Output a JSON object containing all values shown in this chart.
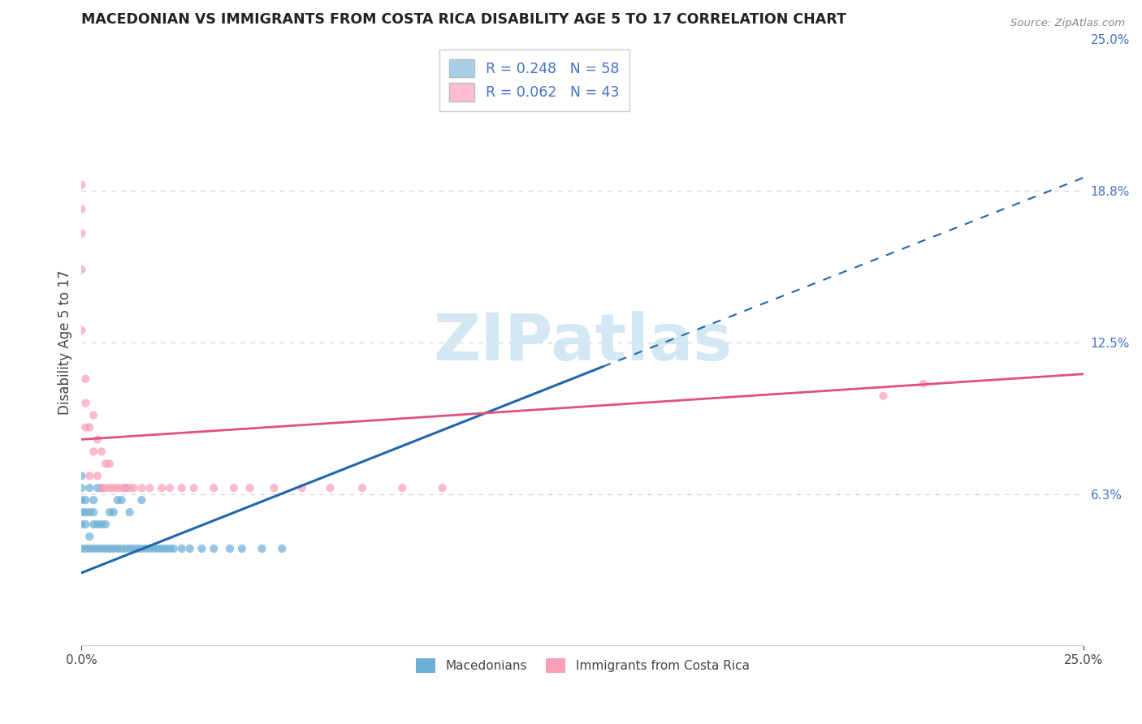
{
  "title": "MACEDONIAN VS IMMIGRANTS FROM COSTA RICA DISABILITY AGE 5 TO 17 CORRELATION CHART",
  "source": "Source: ZipAtlas.com",
  "ylabel": "Disability Age 5 to 17",
  "xlim": [
    0.0,
    0.25
  ],
  "ylim": [
    0.0,
    0.25
  ],
  "color_macedonian": "#6baed6",
  "color_costarica": "#fa9fb5",
  "color_mac_line": "#2166ac",
  "color_cr_line": "#e05080",
  "color_legend_blue": "#a8cfe8",
  "color_legend_pink": "#fcbdd0",
  "watermark_color": "#cce4f0",
  "grid_color": "#d0d0d0",
  "right_tick_color": "#4472c4",
  "mac_trend_x0": 0.0,
  "mac_trend_y0": 0.03,
  "mac_trend_x1": 0.13,
  "mac_trend_y1": 0.115,
  "mac_trend_dash_x0": 0.13,
  "mac_trend_dash_y0": 0.115,
  "mac_trend_dash_x1": 0.25,
  "mac_trend_dash_y1": 0.193,
  "cr_trend_x0": 0.0,
  "cr_trend_y0": 0.085,
  "cr_trend_x1": 0.25,
  "cr_trend_y1": 0.112,
  "mac_scatter_x": [
    0.0,
    0.0,
    0.0,
    0.0,
    0.0,
    0.0,
    0.001,
    0.001,
    0.001,
    0.001,
    0.002,
    0.002,
    0.002,
    0.002,
    0.003,
    0.003,
    0.003,
    0.003,
    0.004,
    0.004,
    0.004,
    0.005,
    0.005,
    0.005,
    0.006,
    0.006,
    0.007,
    0.007,
    0.008,
    0.008,
    0.009,
    0.009,
    0.01,
    0.01,
    0.011,
    0.011,
    0.012,
    0.012,
    0.013,
    0.014,
    0.015,
    0.015,
    0.016,
    0.017,
    0.018,
    0.019,
    0.02,
    0.021,
    0.022,
    0.023,
    0.025,
    0.027,
    0.03,
    0.033,
    0.037,
    0.04,
    0.045,
    0.05
  ],
  "mac_scatter_y": [
    0.04,
    0.05,
    0.055,
    0.06,
    0.065,
    0.07,
    0.04,
    0.05,
    0.055,
    0.06,
    0.04,
    0.045,
    0.055,
    0.065,
    0.04,
    0.05,
    0.055,
    0.06,
    0.04,
    0.05,
    0.065,
    0.04,
    0.05,
    0.065,
    0.04,
    0.05,
    0.04,
    0.055,
    0.04,
    0.055,
    0.04,
    0.06,
    0.04,
    0.06,
    0.04,
    0.065,
    0.04,
    0.055,
    0.04,
    0.04,
    0.04,
    0.06,
    0.04,
    0.04,
    0.04,
    0.04,
    0.04,
    0.04,
    0.04,
    0.04,
    0.04,
    0.04,
    0.04,
    0.04,
    0.04,
    0.04,
    0.04,
    0.04
  ],
  "cr_scatter_x": [
    0.0,
    0.0,
    0.0,
    0.0,
    0.0,
    0.001,
    0.001,
    0.001,
    0.002,
    0.002,
    0.003,
    0.003,
    0.004,
    0.004,
    0.005,
    0.005,
    0.006,
    0.006,
    0.007,
    0.007,
    0.008,
    0.009,
    0.01,
    0.011,
    0.012,
    0.013,
    0.015,
    0.017,
    0.02,
    0.022,
    0.025,
    0.028,
    0.033,
    0.038,
    0.042,
    0.048,
    0.055,
    0.062,
    0.07,
    0.08,
    0.09,
    0.2,
    0.21
  ],
  "cr_scatter_y": [
    0.13,
    0.155,
    0.17,
    0.18,
    0.19,
    0.09,
    0.1,
    0.11,
    0.07,
    0.09,
    0.08,
    0.095,
    0.07,
    0.085,
    0.065,
    0.08,
    0.065,
    0.075,
    0.065,
    0.075,
    0.065,
    0.065,
    0.065,
    0.065,
    0.065,
    0.065,
    0.065,
    0.065,
    0.065,
    0.065,
    0.065,
    0.065,
    0.065,
    0.065,
    0.065,
    0.065,
    0.065,
    0.065,
    0.065,
    0.065,
    0.065,
    0.103,
    0.108
  ]
}
